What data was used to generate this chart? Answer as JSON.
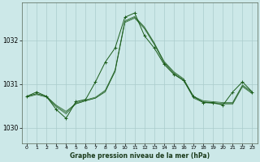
{
  "title": "Graphe pression niveau de la mer (hPa)",
  "background_color": "#cce8e8",
  "grid_color": "#aacccc",
  "line_color": "#1a5c1a",
  "xlim": [
    -0.5,
    23.5
  ],
  "ylim": [
    1029.65,
    1032.85
  ],
  "yticks": [
    1030,
    1031,
    1032
  ],
  "xticks": [
    0,
    1,
    2,
    3,
    4,
    5,
    6,
    7,
    8,
    9,
    10,
    11,
    12,
    13,
    14,
    15,
    16,
    17,
    18,
    19,
    20,
    21,
    22,
    23
  ],
  "series_smooth": {
    "x": [
      0,
      1,
      2,
      3,
      4,
      5,
      6,
      7,
      8,
      9,
      10,
      11,
      12,
      13,
      14,
      15,
      16,
      17,
      18,
      19,
      20,
      21,
      22,
      23
    ],
    "y": [
      1030.72,
      1030.78,
      1030.72,
      1030.52,
      1030.38,
      1030.55,
      1030.62,
      1030.68,
      1030.82,
      1031.3,
      1032.42,
      1032.52,
      1032.28,
      1031.92,
      1031.52,
      1031.28,
      1031.12,
      1030.72,
      1030.62,
      1030.6,
      1030.58,
      1030.58,
      1030.98,
      1030.82
    ]
  },
  "series_smooth2": {
    "x": [
      0,
      1,
      2,
      3,
      4,
      5,
      6,
      7,
      8,
      9,
      10,
      11,
      12,
      13,
      14,
      15,
      16,
      17,
      18,
      19,
      20,
      21,
      22,
      23
    ],
    "y": [
      1030.72,
      1030.78,
      1030.72,
      1030.5,
      1030.35,
      1030.57,
      1030.64,
      1030.7,
      1030.86,
      1031.32,
      1032.44,
      1032.54,
      1032.3,
      1031.94,
      1031.5,
      1031.26,
      1031.1,
      1030.7,
      1030.6,
      1030.58,
      1030.56,
      1030.56,
      1030.96,
      1030.8
    ]
  },
  "series_smooth3": {
    "x": [
      0,
      1,
      2,
      3,
      4,
      5,
      6,
      7,
      8,
      9,
      10,
      11,
      12,
      13,
      14,
      15,
      16,
      17,
      18,
      19,
      20,
      21,
      22,
      23
    ],
    "y": [
      1030.7,
      1030.76,
      1030.7,
      1030.48,
      1030.32,
      1030.55,
      1030.62,
      1030.68,
      1030.84,
      1031.28,
      1032.4,
      1032.5,
      1032.26,
      1031.9,
      1031.48,
      1031.24,
      1031.08,
      1030.68,
      1030.58,
      1030.56,
      1030.54,
      1030.54,
      1030.94,
      1030.78
    ]
  },
  "series_raw": {
    "x": [
      0,
      1,
      2,
      3,
      4,
      5,
      6,
      7,
      8,
      9,
      10,
      11,
      12,
      13,
      14,
      15,
      16,
      17,
      18,
      19,
      20,
      21,
      22,
      23
    ],
    "y": [
      1030.72,
      1030.82,
      1030.72,
      1030.42,
      1030.22,
      1030.6,
      1030.65,
      1031.05,
      1031.5,
      1031.82,
      1032.52,
      1032.62,
      1032.1,
      1031.82,
      1031.45,
      1031.22,
      1031.08,
      1030.72,
      1030.58,
      1030.58,
      1030.52,
      1030.82,
      1031.05,
      1030.82
    ]
  }
}
